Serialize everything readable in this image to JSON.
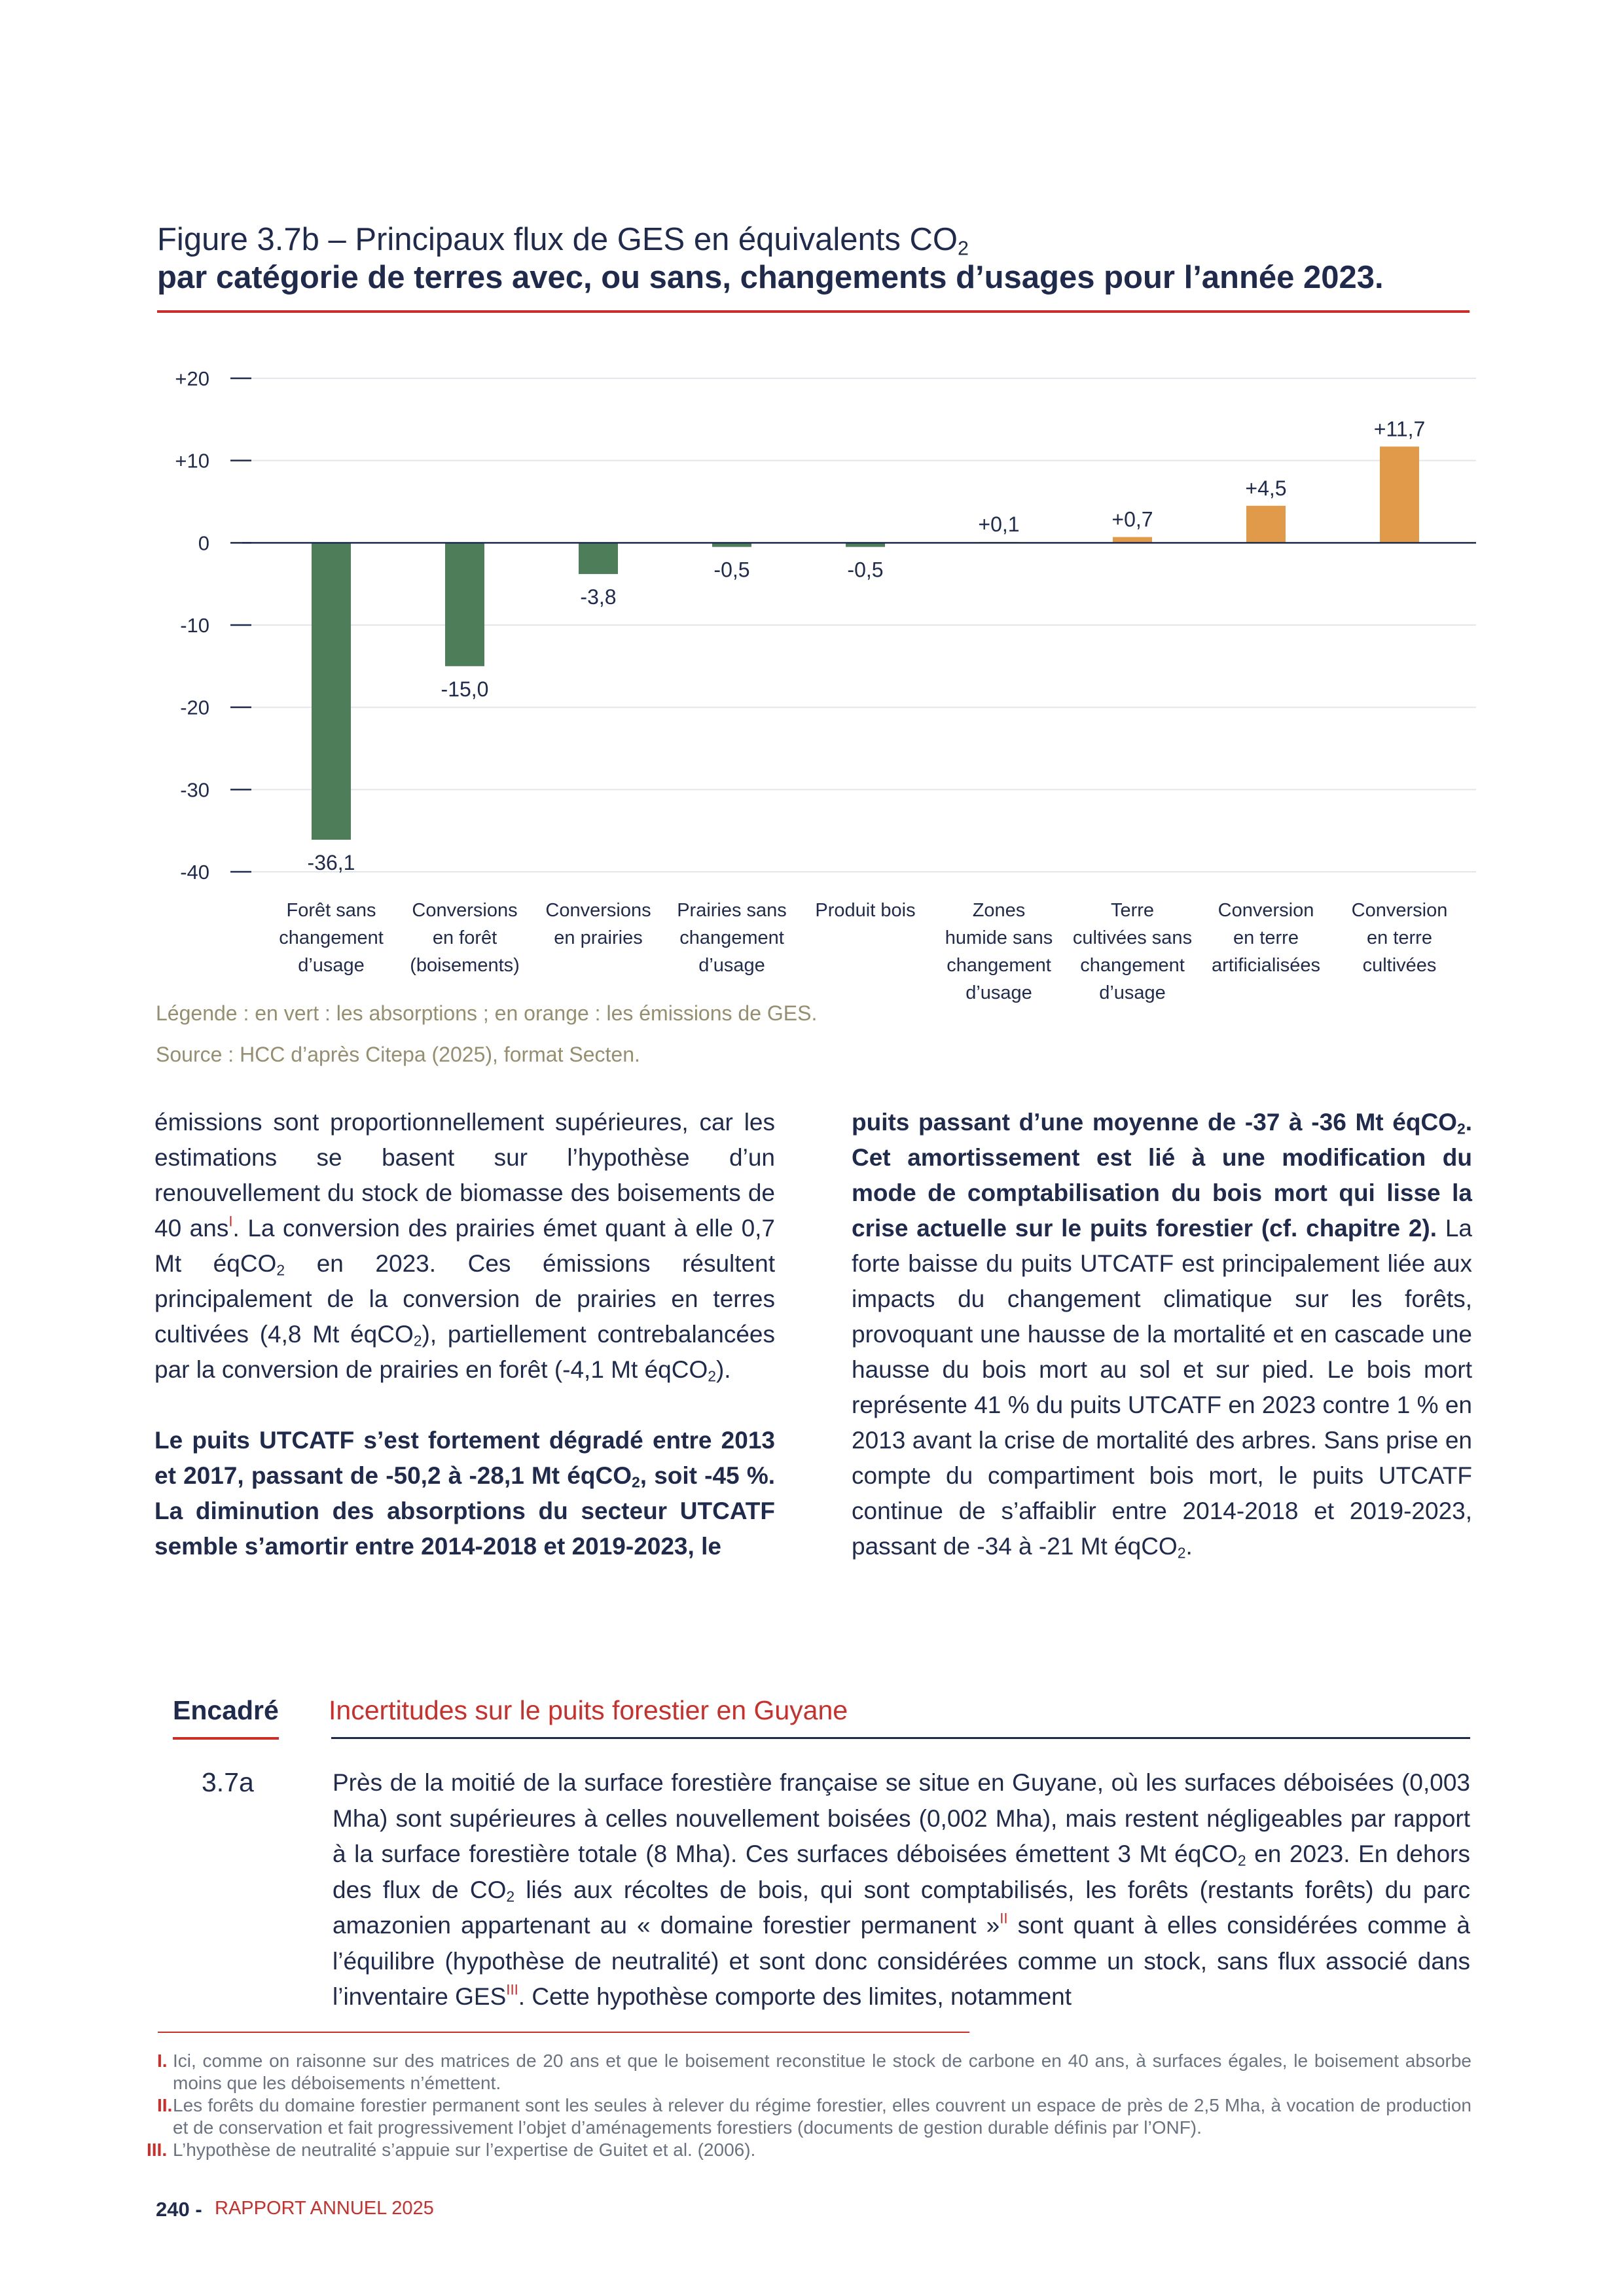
{
  "figure": {
    "title_line1": "Figure 3.7b – Principaux flux de GES en équivalents CO",
    "title_line1_sub": "2",
    "title_line2": "par catégorie de terres avec, ou sans, changements d’usages pour l’année 2023.",
    "legend": "Légende : en vert : les absorptions ; en orange : les émissions de GES.",
    "source": "Source : HCC d’après Citepa (2025), format Secten."
  },
  "chart_data": {
    "type": "bar",
    "title": "",
    "xlabel": "",
    "ylabel": "",
    "ylim": [
      -40,
      20
    ],
    "yticks": [
      20,
      10,
      0,
      -10,
      -20,
      -30,
      -40
    ],
    "ytick_labels": [
      "+20",
      "+10",
      "0",
      "-10",
      "-20",
      "-30",
      "-40"
    ],
    "grid": true,
    "categories": [
      [
        "Forêt sans",
        "changement",
        "d’usage"
      ],
      [
        "Conversions",
        "en forêt",
        "(boisements)"
      ],
      [
        "Conversions",
        "en prairies"
      ],
      [
        "Prairies sans",
        "changement",
        "d’usage"
      ],
      [
        "Produit bois"
      ],
      [
        "Zones",
        "humide sans",
        "changement",
        "d’usage"
      ],
      [
        "Terre",
        "cultivées sans",
        "changement",
        "d’usage"
      ],
      [
        "Conversion",
        "en terre",
        "artificialisées"
      ],
      [
        "Conversion",
        "en terre",
        "cultivées"
      ]
    ],
    "values": [
      -36.1,
      -15.0,
      -3.8,
      -0.5,
      -0.5,
      0.1,
      0.7,
      4.5,
      11.7
    ],
    "value_labels": [
      "-36,1",
      "-15,0",
      "-3,8",
      "-0,5",
      "-0,5",
      "+0,1",
      "+0,7",
      "+4,5",
      "+11,7"
    ],
    "colors": {
      "absorption": "#4e7d59",
      "emission": "#e09a49"
    }
  },
  "left_column": {
    "p1": [
      {
        "t": "émissions sont proportionnellement supérieures, car les estimations se basent sur l’hypothèse d’un renouvellement du stock de biomasse des boisements de 40 ans"
      },
      {
        "t": "I",
        "sup": true
      },
      {
        "t": ". La conversion des prairies émet quant à elle 0,7 Mt éqCO"
      },
      {
        "t": "2",
        "sub": true
      },
      {
        "t": " en 2023. Ces émissions résultent principalement de la conversion de prairies en terres cultivées (4,8 Mt éqCO"
      },
      {
        "t": "2",
        "sub": true
      },
      {
        "t": "), partiellement contrebalancées par la conversion de prairies en forêt (-4,1 Mt éqCO"
      },
      {
        "t": "2",
        "sub": true
      },
      {
        "t": ")."
      }
    ],
    "p2": [
      {
        "t": "Le puits UTCATF s’est fortement dégradé entre 2013 et 2017, passant de -50,2 à -28,1 Mt éqCO"
      },
      {
        "t": "2",
        "sub": true
      },
      {
        "t": ", soit -45 %. La diminution des absorptions du secteur UTCATF semble s’amortir entre 2014-2018 et 2019-2023, le"
      }
    ]
  },
  "right_column": {
    "p1": [
      {
        "t": "puits passant d’une moyenne de -37 à -36 Mt éqCO",
        "b": true
      },
      {
        "t": "2",
        "sub": true,
        "b": true
      },
      {
        "t": ". Cet amortissement est lié à une modification du mode de comptabilisation du bois mort qui lisse la crise actuelle sur le puits forestier (cf. chapitre 2).",
        "b": true
      },
      {
        "t": " La forte baisse du puits UTCATF est principalement liée aux impacts du changement climatique sur les forêts, provoquant une hausse de la mortalité et en cascade une hausse du bois mort au sol et sur pied. Le bois mort représente 41 % du puits UTCATF en 2023 contre 1 % en 2013 avant la crise de mortalité des arbres. Sans prise en compte du compartiment bois mort, le puits UTCATF continue de s’affaiblir entre 2014-2018 et 2019-2023, passant de -34 à -21 Mt éqCO"
      },
      {
        "t": "2",
        "sub": true
      },
      {
        "t": "."
      }
    ]
  },
  "box": {
    "tag": "Encadré",
    "number": "3.7a",
    "title": "Incertitudes sur le puits forestier en Guyane",
    "body": [
      {
        "t": "Près de la moitié de la surface forestière française se situe en Guyane, où les surfaces déboisées (0,003 Mha) sont supérieures à celles nouvellement boisées (0,002 Mha), mais restent négligeables par rapport à la surface forestière totale (8 Mha). Ces surfaces déboisées émettent 3 Mt éqCO"
      },
      {
        "t": "2",
        "sub": true
      },
      {
        "t": " en 2023. En dehors des flux de CO"
      },
      {
        "t": "2",
        "sub": true
      },
      {
        "t": " liés aux récoltes de bois, qui sont comptabilisés, les forêts (restants forêts) du parc amazonien appartenant au « domaine forestier permanent »"
      },
      {
        "t": "II",
        "sup": true
      },
      {
        "t": " sont quant à elles considérées comme à l’équilibre (hypothèse de neutralité) et sont donc considérées comme un stock, sans flux associé dans l’inventaire GES"
      },
      {
        "t": "III",
        "sup": true
      },
      {
        "t": ". Cette hypothèse comporte des limites, notamment"
      }
    ]
  },
  "footnotes": [
    {
      "mark": "I.",
      "text": "Ici, comme on raisonne sur des matrices de 20 ans et que le boisement reconstitue le stock de carbone en 40 ans, à surfaces égales, le boisement absorbe moins que les déboisements n’émettent."
    },
    {
      "mark": "II.",
      "text": "Les forêts du domaine forestier permanent sont les seules à relever du régime forestier, elles couvrent un espace de près de 2,5 Mha, à vocation de production et de conservation et fait progressivement l’objet d’aménagements forestiers (documents de gestion durable définis par l’ONF)."
    },
    {
      "mark": "III.",
      "text": "L’hypothèse de neutralité s’appuie sur l’expertise de Guitet et al. (2006)."
    }
  ],
  "footer": {
    "page_number": "240 -",
    "report": "RAPPORT ANNUEL 2025"
  }
}
